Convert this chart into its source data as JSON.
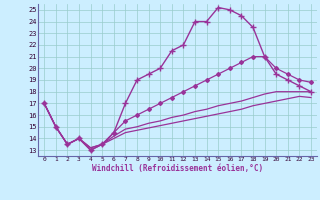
{
  "bg_color": "#cceeff",
  "grid_color": "#99cccc",
  "line_color": "#993399",
  "spine_color": "#6666aa",
  "xlabel": "Windchill (Refroidissement éolien,°C)",
  "xlim": [
    -0.5,
    23.5
  ],
  "ylim": [
    12.5,
    25.5
  ],
  "xticks": [
    0,
    1,
    2,
    3,
    4,
    5,
    6,
    7,
    8,
    9,
    10,
    11,
    12,
    13,
    14,
    15,
    16,
    17,
    18,
    19,
    20,
    21,
    22,
    23
  ],
  "yticks": [
    13,
    14,
    15,
    16,
    17,
    18,
    19,
    20,
    21,
    22,
    23,
    24,
    25
  ],
  "lines": [
    {
      "x": [
        0,
        1,
        2,
        3,
        4,
        5,
        6,
        7,
        8,
        9,
        10,
        11,
        12,
        13,
        14,
        15,
        16,
        17,
        18,
        19,
        20,
        21,
        22,
        23
      ],
      "y": [
        17,
        15,
        13.5,
        14,
        13,
        13.5,
        14.5,
        17,
        19,
        19.5,
        20,
        21.5,
        22,
        24,
        24,
        25.2,
        25,
        24.5,
        23.5,
        21,
        19.5,
        19,
        18.5,
        18
      ],
      "marker": "+",
      "markersize": 4,
      "lw": 1.0
    },
    {
      "x": [
        0,
        1,
        2,
        3,
        4,
        5,
        6,
        7,
        8,
        9,
        10,
        11,
        12,
        13,
        14,
        15,
        16,
        17,
        18,
        19,
        20,
        21,
        22,
        23
      ],
      "y": [
        17,
        15,
        13.5,
        14,
        13,
        13.5,
        14.5,
        15.5,
        16,
        16.5,
        17,
        17.5,
        18,
        18.5,
        19,
        19.5,
        20,
        20.5,
        21,
        21,
        20,
        19.5,
        19,
        18.8
      ],
      "marker": "D",
      "markersize": 2,
      "lw": 0.9
    },
    {
      "x": [
        0,
        1,
        2,
        3,
        4,
        5,
        6,
        7,
        8,
        9,
        10,
        11,
        12,
        13,
        14,
        15,
        16,
        17,
        18,
        19,
        20,
        21,
        22,
        23
      ],
      "y": [
        17,
        15,
        13.5,
        14,
        13.2,
        13.5,
        14.2,
        14.8,
        15.0,
        15.3,
        15.5,
        15.8,
        16.0,
        16.3,
        16.5,
        16.8,
        17.0,
        17.2,
        17.5,
        17.8,
        18.0,
        18.0,
        18.0,
        18.0
      ],
      "marker": null,
      "markersize": 0,
      "lw": 0.9
    },
    {
      "x": [
        0,
        1,
        2,
        3,
        4,
        5,
        6,
        7,
        8,
        9,
        10,
        11,
        12,
        13,
        14,
        15,
        16,
        17,
        18,
        19,
        20,
        21,
        22,
        23
      ],
      "y": [
        17,
        15,
        13.5,
        14,
        13.2,
        13.5,
        14.0,
        14.5,
        14.7,
        14.9,
        15.1,
        15.3,
        15.5,
        15.7,
        15.9,
        16.1,
        16.3,
        16.5,
        16.8,
        17.0,
        17.2,
        17.4,
        17.6,
        17.5
      ],
      "marker": null,
      "markersize": 0,
      "lw": 0.9
    }
  ]
}
